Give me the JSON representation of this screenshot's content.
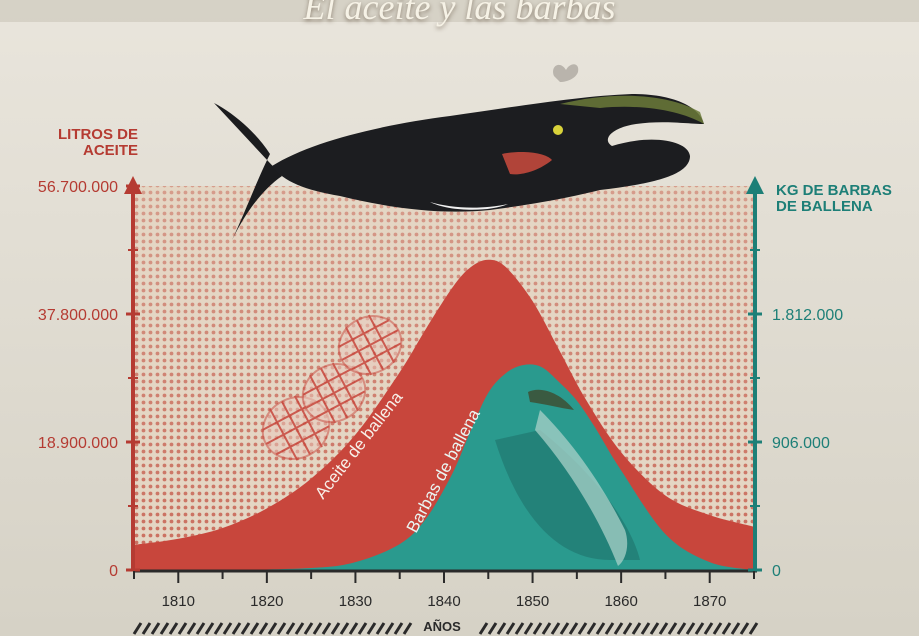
{
  "page": {
    "title": "El aceite y las barbas"
  },
  "chart_data": {
    "type": "area",
    "title": "El aceite y las barbas",
    "xlabel": "AÑOS",
    "x_ticks": [
      1810,
      1820,
      1830,
      1840,
      1850,
      1860,
      1870
    ],
    "xlim": [
      1805,
      1875
    ],
    "y_left": {
      "label": "LITROS DE ACEITE",
      "ticks": [
        "0",
        "18.900.000",
        "37.800.000",
        "56.700.000"
      ],
      "tick_values": [
        0,
        18900000,
        37800000,
        56700000
      ],
      "range": [
        0,
        56700000
      ],
      "color": "#b53b32"
    },
    "y_right": {
      "label": "KG DE BARBAS DE BALLENA",
      "ticks": [
        "0",
        "906.000",
        "1.812.000"
      ],
      "tick_values": [
        0,
        906000,
        1812000
      ],
      "range": [
        0,
        2718000
      ],
      "color": "#1d7f77"
    },
    "series": [
      {
        "name": "Aceite de ballena",
        "axis": "left",
        "color": "#c8463c",
        "x": [
          1805,
          1810,
          1815,
          1820,
          1825,
          1830,
          1835,
          1838,
          1841,
          1843,
          1845,
          1847,
          1850,
          1853,
          1856,
          1860,
          1865,
          1870,
          1875
        ],
        "y": [
          3700000,
          4600000,
          6200000,
          9100000,
          13500000,
          20000000,
          29200000,
          35700000,
          41800000,
          44700000,
          45800000,
          44700000,
          39700000,
          32500000,
          25200000,
          17400000,
          11000000,
          8100000,
          6400000
        ]
      },
      {
        "name": "Barbas de ballena",
        "axis": "right",
        "color": "#2a9a8e",
        "x": [
          1805,
          1815,
          1825,
          1830,
          1835,
          1838,
          1841,
          1843,
          1845,
          1847,
          1849,
          1851,
          1853,
          1855,
          1857,
          1860,
          1865,
          1870,
          1875
        ],
        "y": [
          0,
          0,
          14000,
          56000,
          183000,
          366000,
          690000,
          985000,
          1254000,
          1394000,
          1451000,
          1437000,
          1330000,
          1198000,
          1014000,
          705000,
          254000,
          56000,
          0
        ]
      }
    ],
    "grid": false
  }
}
